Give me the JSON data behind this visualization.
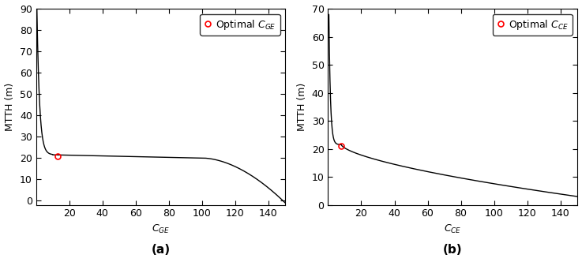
{
  "panel_a": {
    "xlabel": "C_{GE}",
    "ylabel": "MTTH (m)",
    "xlim": [
      0,
      150
    ],
    "ylim": [
      -2,
      90
    ],
    "yticks": [
      0,
      10,
      20,
      30,
      40,
      50,
      60,
      70,
      80,
      90
    ],
    "xticks": [
      20,
      40,
      60,
      80,
      100,
      120,
      140
    ],
    "optimal_x": 13,
    "optimal_y": 21,
    "label": "(a)",
    "curve_start_x": 0.5,
    "curve_start_y": 90,
    "flat_start_x": 10,
    "flat_y": 21.5,
    "bend_x": 100,
    "end_y": -1
  },
  "panel_b": {
    "xlabel": "C_{CE}",
    "ylabel": "MTTH (m)",
    "xlim": [
      0,
      150
    ],
    "ylim": [
      0,
      70
    ],
    "yticks": [
      0,
      10,
      20,
      30,
      40,
      50,
      60,
      70
    ],
    "xticks": [
      20,
      40,
      60,
      80,
      100,
      120,
      140
    ],
    "optimal_x": 8,
    "optimal_y": 21,
    "label": "(b)",
    "curve_start_x": 0.5,
    "curve_start_y": 68,
    "flat_start_x": 8,
    "flat_y": 21.5,
    "end_y": 3
  },
  "line_color": "#000000",
  "marker_color": "#ff0000",
  "background_color": "#ffffff",
  "font_size": 9,
  "label_font_size": 11,
  "tick_direction": "in"
}
